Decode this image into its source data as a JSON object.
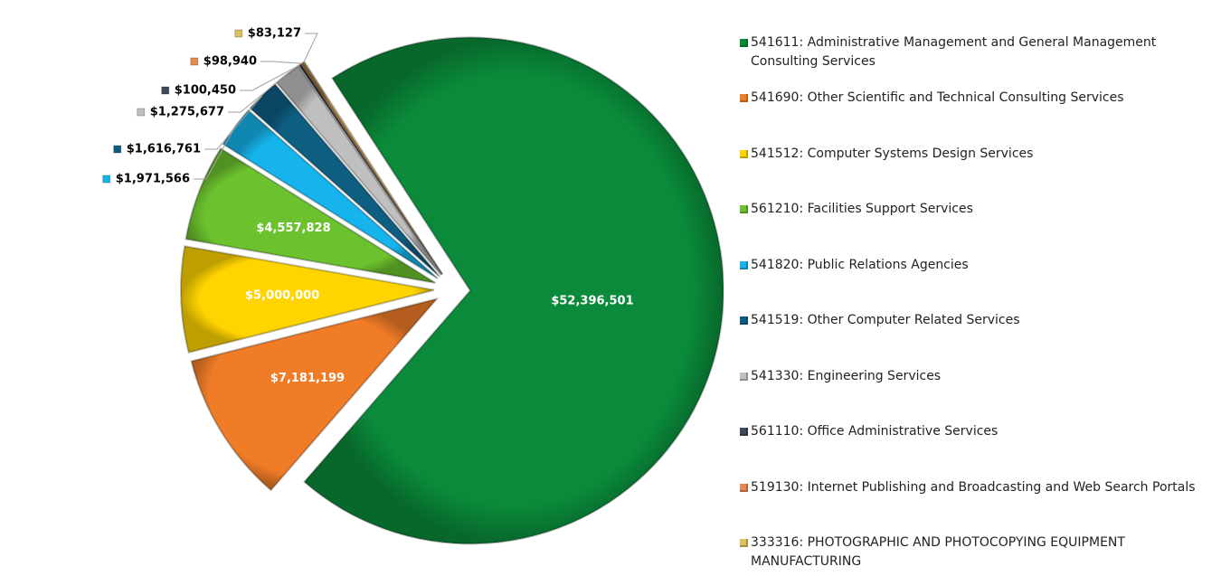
{
  "chart_data": {
    "type": "pie",
    "title": "",
    "exploded": true,
    "legend_position": "right",
    "slices": [
      {
        "code": "541611",
        "label": "541611:  Administrative Management and General Management Consulting Services",
        "value": 52396501,
        "value_label": "$52,396,501",
        "color": "#0a8a3a",
        "label_placement": "inside"
      },
      {
        "code": "541690",
        "label": "541690:  Other Scientific and Technical Consulting Services",
        "value": 7181199,
        "value_label": "$7,181,199",
        "color": "#f07c28",
        "label_placement": "inside"
      },
      {
        "code": "541512",
        "label": "541512:  Computer Systems Design Services",
        "value": 5000000,
        "value_label": "$5,000,000",
        "color": "#ffd400",
        "label_placement": "inside"
      },
      {
        "code": "561210",
        "label": "561210:  Facilities Support Services",
        "value": 4557828,
        "value_label": "$4,557,828",
        "color": "#6cc12e",
        "label_placement": "inside"
      },
      {
        "code": "541820",
        "label": "541820:  Public Relations Agencies",
        "value": 1971566,
        "value_label": "$1,971,566",
        "color": "#16b4ec",
        "label_placement": "outside"
      },
      {
        "code": "541519",
        "label": "541519:  Other Computer Related Services",
        "value": 1616761,
        "value_label": "$1,616,761",
        "color": "#0e5e82",
        "label_placement": "outside"
      },
      {
        "code": "541330",
        "label": "541330:  Engineering Services",
        "value": 1275677,
        "value_label": "$1,275,677",
        "color": "#bfbfbf",
        "label_placement": "outside"
      },
      {
        "code": "561110",
        "label": "561110:  Office Administrative Services",
        "value": 100450,
        "value_label": "$100,450",
        "color": "#3e4a55",
        "label_placement": "outside"
      },
      {
        "code": "519130",
        "label": "519130:  Internet Publishing and Broadcasting and Web Search Portals",
        "value": 98940,
        "value_label": "$98,940",
        "color": "#e58a50",
        "label_placement": "outside"
      },
      {
        "code": "333316",
        "label": "333316:  PHOTOGRAPHIC AND PHOTOCOPYING EQUIPMENT MANUFACTURING",
        "value": 83127,
        "value_label": "$83,127",
        "color": "#d9c060",
        "label_placement": "outside"
      }
    ]
  }
}
